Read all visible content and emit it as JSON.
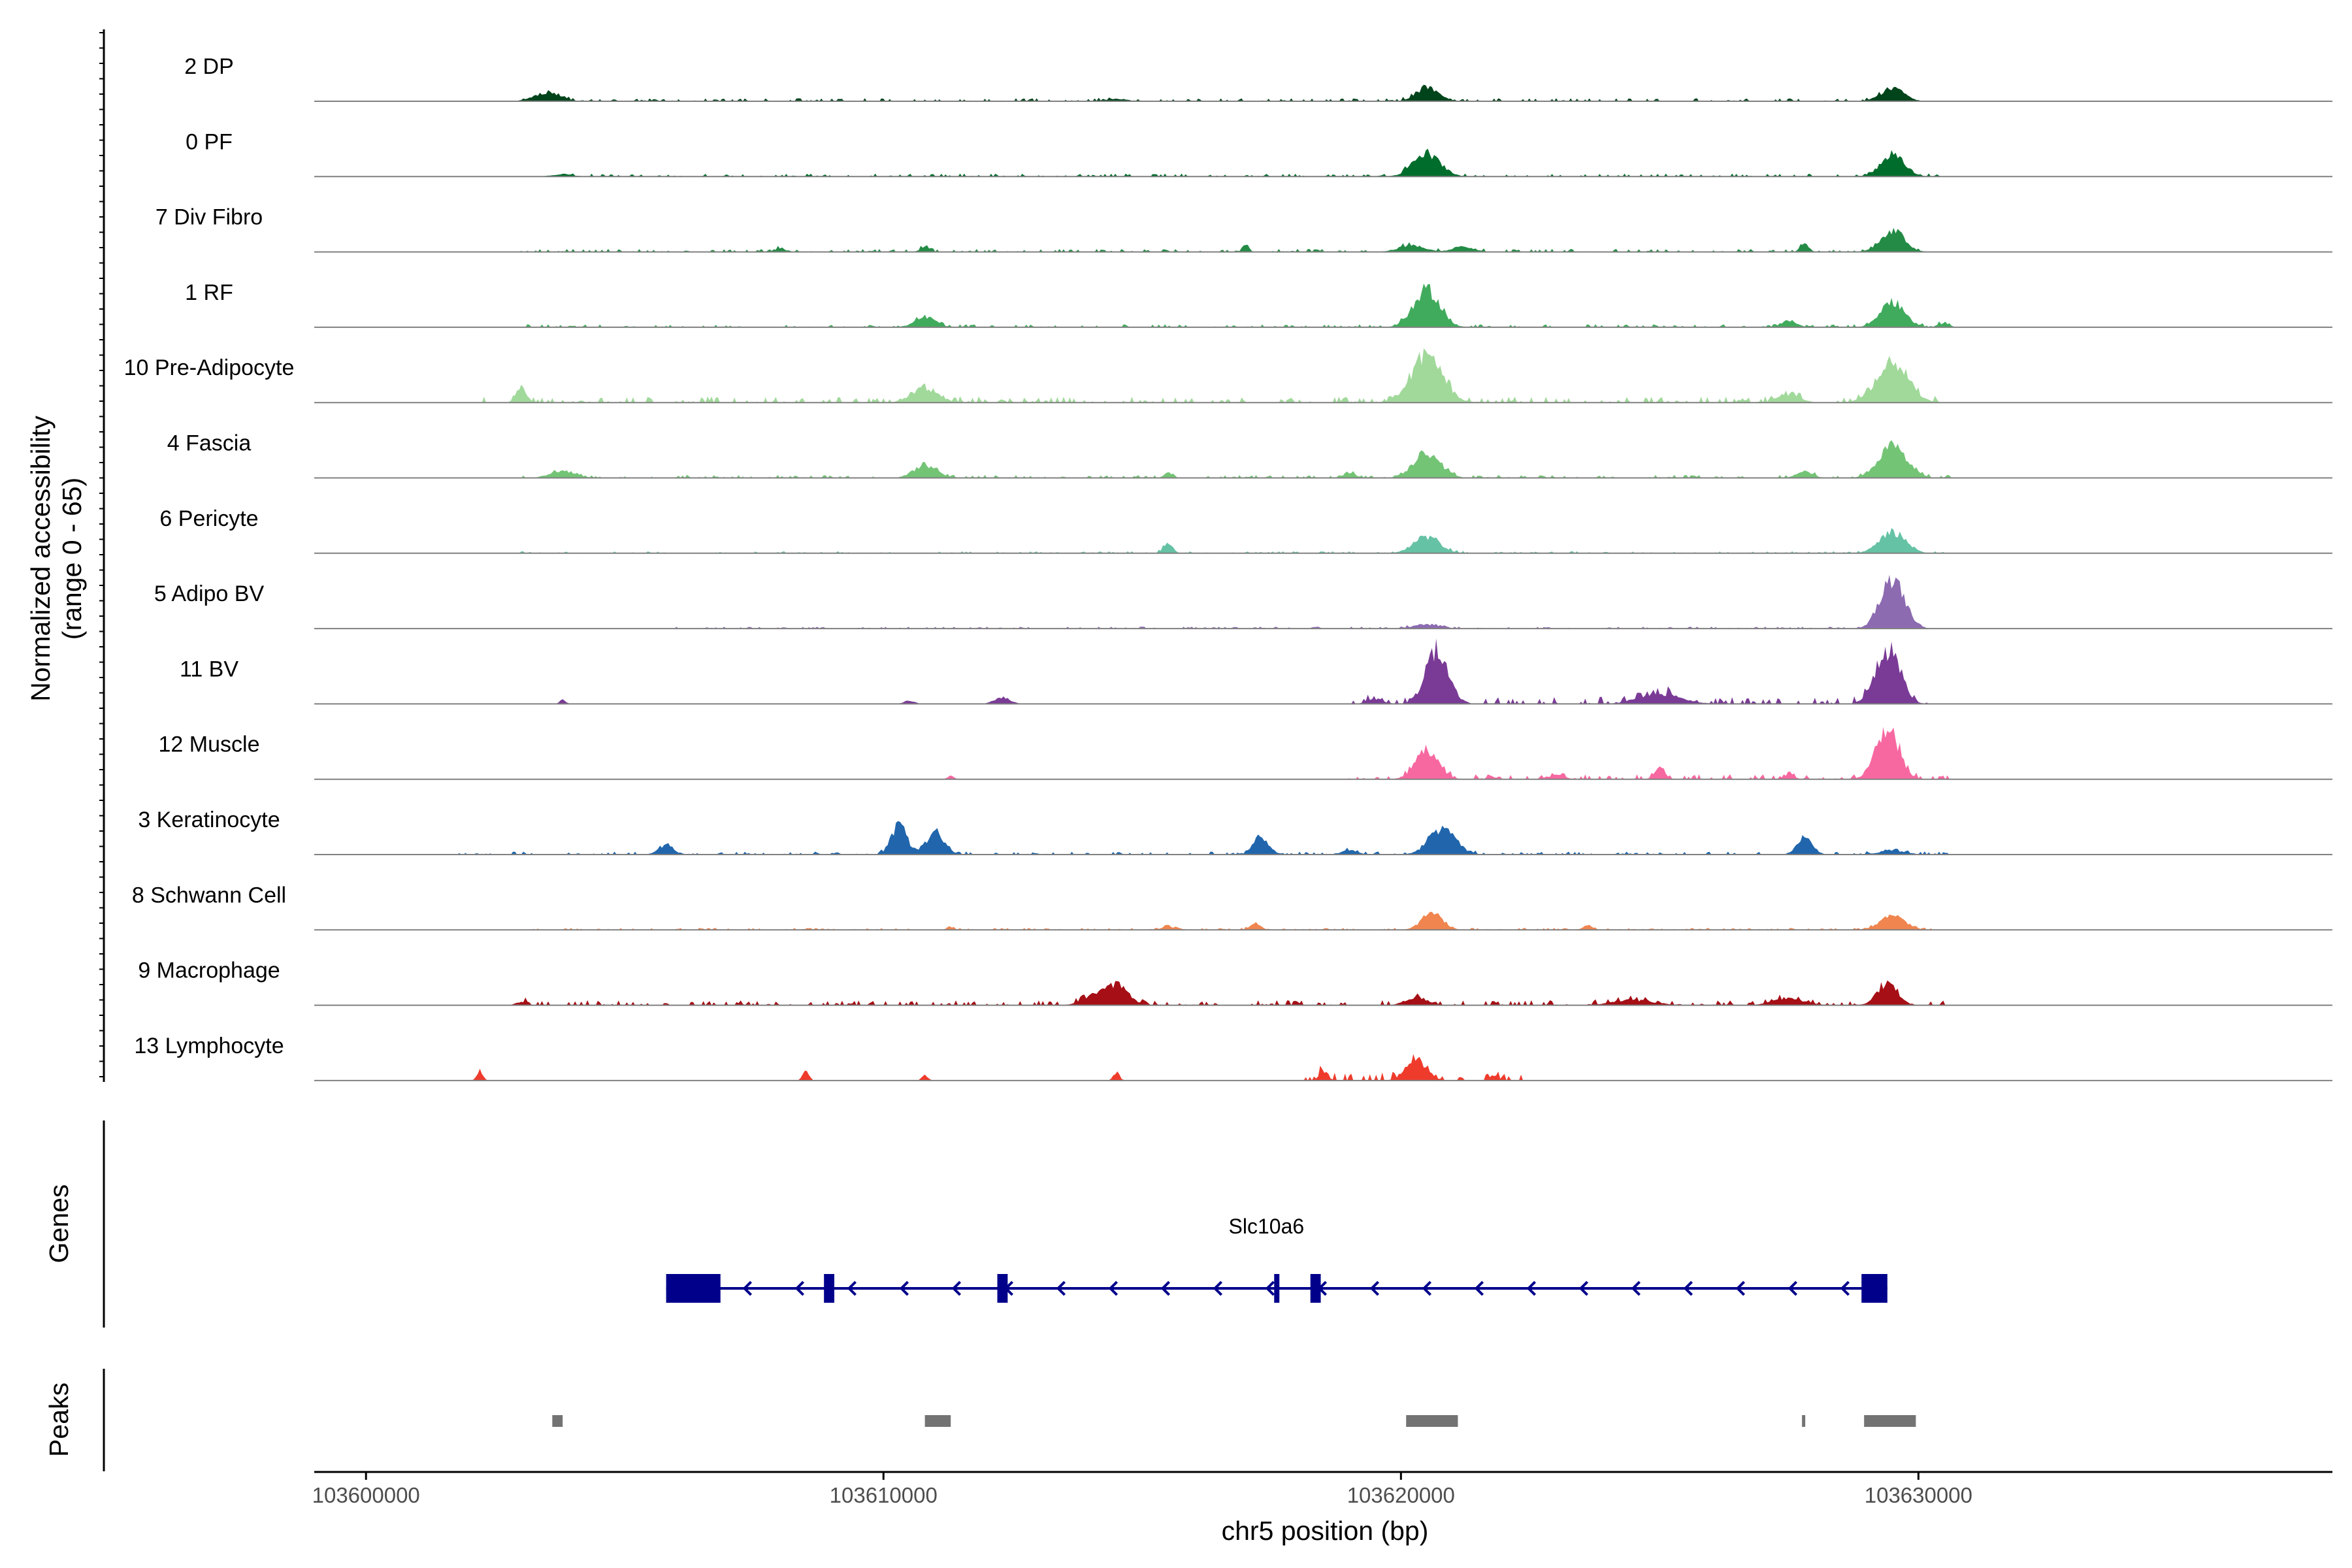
{
  "chart_data": {
    "type": "area",
    "y_axis_label_line1": "Normalized accessibility",
    "y_axis_label_line2": "(range 0 - 65)",
    "y_range": [
      0,
      65
    ],
    "x_axis_label": "chr5 position (bp)",
    "x_range": [
      103599000,
      103638000
    ],
    "x_ticks": [
      103600000,
      103610000,
      103620000,
      103630000
    ],
    "x_tick_labels": [
      "103600000",
      "103610000",
      "103620000",
      "103630000"
    ],
    "tracks": [
      {
        "name": "2 DP",
        "color": "#00441b",
        "peaks": [
          [
            103603500,
            10,
            250
          ],
          [
            103614500,
            3,
            200
          ],
          [
            103620500,
            16,
            220
          ],
          [
            103629500,
            16,
            220
          ]
        ],
        "noise": [
          103603000,
          103630000,
          3
        ]
      },
      {
        "name": "0 PF",
        "color": "#006d2c",
        "peaks": [
          [
            103620500,
            28,
            260
          ],
          [
            103629500,
            25,
            230
          ],
          [
            103603800,
            3,
            200
          ]
        ],
        "noise": [
          103604000,
          103630500,
          3
        ]
      },
      {
        "name": "7 Div Fibro",
        "color": "#238b45",
        "peaks": [
          [
            103617000,
            10,
            60
          ],
          [
            103620200,
            8,
            250
          ],
          [
            103621200,
            6,
            200
          ],
          [
            103627800,
            10,
            80
          ],
          [
            103629500,
            25,
            230
          ],
          [
            103610800,
            6,
            90
          ],
          [
            103608000,
            5,
            90
          ]
        ],
        "noise": [
          103602800,
          103630500,
          3
        ]
      },
      {
        "name": "1 RF",
        "color": "#41ab5d",
        "peaks": [
          [
            103610800,
            12,
            200
          ],
          [
            103620500,
            45,
            250
          ],
          [
            103629500,
            30,
            230
          ],
          [
            103627500,
            8,
            150
          ],
          [
            103630500,
            5,
            100
          ]
        ],
        "noise": [
          103603000,
          103630600,
          3
        ]
      },
      {
        "name": "10 Pre-Adipocyte",
        "color": "#a1d99b",
        "peaks": [
          [
            103603000,
            18,
            100
          ],
          [
            103610800,
            18,
            250
          ],
          [
            103620500,
            58,
            300
          ],
          [
            103629500,
            48,
            300
          ],
          [
            103627500,
            10,
            200
          ]
        ],
        "noise": [
          103602000,
          103630500,
          6
        ]
      },
      {
        "name": "4 Fascia",
        "color": "#74c476",
        "peaks": [
          [
            103603800,
            8,
            250
          ],
          [
            103610800,
            15,
            220
          ],
          [
            103620500,
            30,
            260
          ],
          [
            103629500,
            38,
            270
          ],
          [
            103615500,
            6,
            80
          ],
          [
            103619000,
            6,
            120
          ],
          [
            103627800,
            8,
            150
          ]
        ],
        "noise": [
          103603000,
          103630600,
          3
        ]
      },
      {
        "name": "6 Pericyte",
        "color": "#66c2a4",
        "peaks": [
          [
            103615500,
            12,
            90
          ],
          [
            103620500,
            20,
            250
          ],
          [
            103629500,
            25,
            250
          ]
        ],
        "noise": [
          103603000,
          103630500,
          2
        ]
      },
      {
        "name": "5 Adipo BV",
        "color": "#8c6bb1",
        "peaks": [
          [
            103629500,
            60,
            230
          ],
          [
            103620500,
            5,
            250
          ]
        ],
        "noise": [
          103606000,
          103630500,
          2
        ]
      },
      {
        "name": "11 BV",
        "color": "#7a3b96",
        "peaks": [
          [
            103620700,
            65,
            220
          ],
          [
            103629400,
            65,
            230
          ],
          [
            103612300,
            8,
            150
          ],
          [
            103603800,
            5,
            60
          ],
          [
            103625000,
            12,
            400
          ],
          [
            103610500,
            4,
            100
          ],
          [
            103619500,
            6,
            150
          ]
        ],
        "noise": [
          103619000,
          103630500,
          7
        ]
      },
      {
        "name": "12 Muscle",
        "color": "#f768a1",
        "peaks": [
          [
            103620500,
            35,
            220
          ],
          [
            103629400,
            60,
            220
          ],
          [
            103625000,
            15,
            100
          ],
          [
            103623000,
            5,
            150
          ],
          [
            103627500,
            6,
            100
          ],
          [
            103611300,
            4,
            60
          ]
        ],
        "noise": [
          103619000,
          103630600,
          5
        ]
      },
      {
        "name": "3 Keratinocyte",
        "color": "#2166ac",
        "peaks": [
          [
            103610300,
            35,
            150
          ],
          [
            103611000,
            25,
            180
          ],
          [
            103617300,
            22,
            150
          ],
          [
            103620800,
            30,
            260
          ],
          [
            103627800,
            20,
            150
          ],
          [
            103605800,
            10,
            150
          ],
          [
            103619000,
            5,
            150
          ],
          [
            103629500,
            5,
            250
          ]
        ],
        "noise": [
          103601800,
          103630600,
          3
        ]
      },
      {
        "name": "8 Schwann Cell",
        "color": "#f0854f",
        "peaks": [
          [
            103620600,
            20,
            200
          ],
          [
            103629500,
            18,
            240
          ],
          [
            103617200,
            8,
            100
          ],
          [
            103615500,
            5,
            100
          ],
          [
            103623600,
            6,
            80
          ],
          [
            103611300,
            3,
            80
          ]
        ],
        "noise": [
          103603000,
          103630500,
          2
        ]
      },
      {
        "name": "9 Macrophage",
        "color": "#a50f15",
        "peaks": [
          [
            103614500,
            25,
            220
          ],
          [
            103629400,
            25,
            200
          ],
          [
            103620300,
            10,
            200
          ],
          [
            103614000,
            10,
            200
          ],
          [
            103624500,
            6,
            400
          ],
          [
            103627500,
            8,
            300
          ],
          [
            103603000,
            4,
            100
          ]
        ],
        "noise": [
          103603000,
          103630500,
          5
        ]
      },
      {
        "name": "13 Lymphocyte",
        "color": "#ef3b2c",
        "peaks": [
          [
            103602200,
            12,
            60
          ],
          [
            103608500,
            12,
            60
          ],
          [
            103614500,
            10,
            60
          ],
          [
            103620300,
            25,
            200
          ],
          [
            103618500,
            12,
            80
          ],
          [
            103610800,
            6,
            60
          ],
          [
            103621800,
            6,
            80
          ]
        ],
        "noise": [
          103618000,
          103622500,
          8
        ]
      }
    ],
    "genes": [
      {
        "name": "Slc10a6",
        "color": "#00008b",
        "start": 103605800,
        "end": 103629400,
        "strand": "-",
        "exons": [
          [
            103605800,
            103606850
          ],
          [
            103608850,
            103609050
          ],
          [
            103612200,
            103612400
          ],
          [
            103617550,
            103617650
          ],
          [
            103618250,
            103618450
          ],
          [
            103628900,
            103629400
          ]
        ]
      }
    ],
    "peaks": {
      "label": "Peaks",
      "color": "#737373",
      "regions": [
        [
          103603600,
          103603800
        ],
        [
          103610800,
          103611300
        ],
        [
          103620100,
          103621100
        ],
        [
          103627750,
          103627800
        ],
        [
          103628950,
          103629950
        ]
      ]
    }
  },
  "panels": {
    "genes_label": "Genes",
    "peaks_label": "Peaks"
  }
}
